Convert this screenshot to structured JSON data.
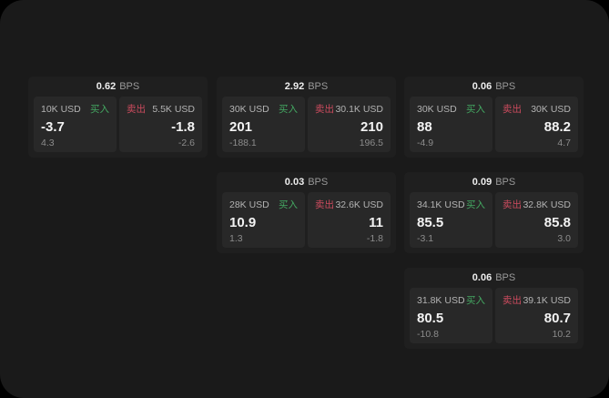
{
  "labels": {
    "bps": "BPS",
    "buy": "买入",
    "sell": "卖出"
  },
  "colors": {
    "page_background": "#1a1a1a",
    "card_background": "#1f1f1f",
    "tile_background": "#282828",
    "buy_green": "#44a862",
    "sell_red": "#cc4b5e"
  },
  "cards": [
    {
      "bps": "0.62",
      "col": 1,
      "row": 1,
      "buy": {
        "amount": "10K USD",
        "value": "-3.7",
        "sub": "4.3"
      },
      "sell": {
        "amount": "5.5K USD",
        "value": "-1.8",
        "sub": "-2.6"
      }
    },
    {
      "bps": "2.92",
      "col": 2,
      "row": 1,
      "buy": {
        "amount": "30K USD",
        "value": "201",
        "sub": "-188.1"
      },
      "sell": {
        "amount": "30.1K USD",
        "value": "210",
        "sub": "196.5"
      }
    },
    {
      "bps": "0.06",
      "col": 3,
      "row": 1,
      "buy": {
        "amount": "30K USD",
        "value": "88",
        "sub": "-4.9"
      },
      "sell": {
        "amount": "30K USD",
        "value": "88.2",
        "sub": "4.7"
      }
    },
    {
      "bps": "0.03",
      "col": 2,
      "row": 2,
      "buy": {
        "amount": "28K USD",
        "value": "10.9",
        "sub": "1.3"
      },
      "sell": {
        "amount": "32.6K USD",
        "value": "11",
        "sub": "-1.8"
      }
    },
    {
      "bps": "0.09",
      "col": 3,
      "row": 2,
      "buy": {
        "amount": "34.1K USD",
        "value": "85.5",
        "sub": "-3.1"
      },
      "sell": {
        "amount": "32.8K USD",
        "value": "85.8",
        "sub": "3.0"
      }
    },
    {
      "bps": "0.06",
      "col": 3,
      "row": 3,
      "buy": {
        "amount": "31.8K USD",
        "value": "80.5",
        "sub": "-10.8"
      },
      "sell": {
        "amount": "39.1K USD",
        "value": "80.7",
        "sub": "10.2"
      }
    }
  ]
}
